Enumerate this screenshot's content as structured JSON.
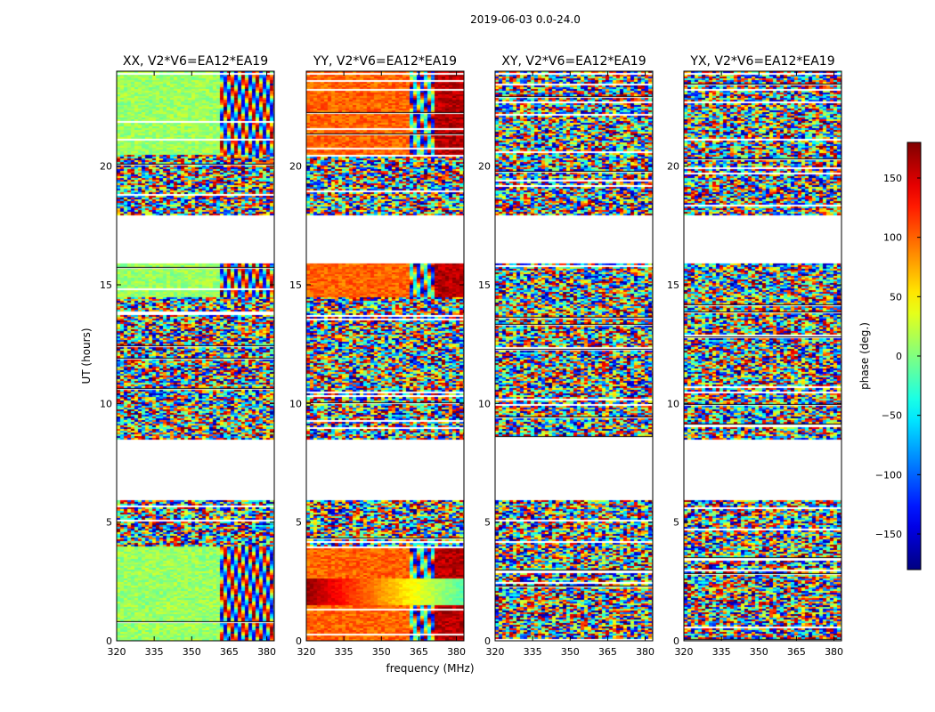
{
  "figure_title": "2019-06-03 0.0-24.0",
  "chart_data": {
    "type": "heatmap",
    "title": "2019-06-03 0.0-24.0",
    "xlabel": "frequency (MHz)",
    "ylabel": "UT (hours)",
    "xlim": [
      320,
      383
    ],
    "ylim": [
      0,
      24
    ],
    "xticks": [
      320,
      335,
      350,
      365,
      380
    ],
    "yticks": [
      0,
      5,
      10,
      15,
      20
    ],
    "panels": [
      {
        "title": "XX, V2*V6=EA12*EA19",
        "phase_offset_deg": 10,
        "coherent": true
      },
      {
        "title": "YY, V2*V6=EA12*EA19",
        "phase_offset_deg": 100,
        "coherent": true
      },
      {
        "title": "XY, V2*V6=EA12*EA19",
        "phase_offset_deg": 0,
        "coherent": false
      },
      {
        "title": "YX, V2*V6=EA12*EA19",
        "phase_offset_deg": 0,
        "coherent": false
      }
    ],
    "data_gaps_hours": [
      [
        6.0,
        8.5
      ],
      [
        15.9,
        18.0
      ],
      [
        23.9,
        24.0
      ]
    ],
    "colorbar": {
      "label": "phase (deg.)",
      "range": [
        -180,
        180
      ],
      "ticks": [
        -150,
        -100,
        -50,
        0,
        50,
        100,
        150
      ],
      "colormap": "jet"
    }
  }
}
